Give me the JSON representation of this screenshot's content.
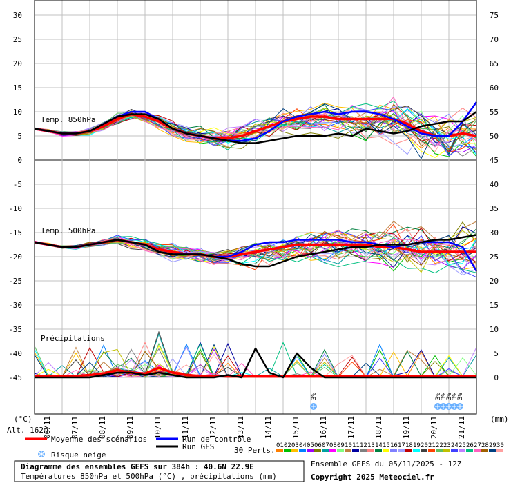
{
  "chart_data": {
    "type": "line",
    "title": "Diagramme des ensembles GEFS sur 384h : 40.6N 22.9E",
    "subtitle": "Températures 850hPa et 500hPa (°C) , précipitations (mm)",
    "left_axis": {
      "unit": "(°C)",
      "ticks": [
        30,
        25,
        20,
        15,
        10,
        5,
        0,
        -5,
        -10,
        -15,
        -20,
        -25,
        -30,
        -35,
        -40,
        -45
      ],
      "ylim": [
        -45,
        30
      ]
    },
    "right_axis": {
      "unit": "(mm)",
      "ticks": [
        75,
        70,
        65,
        60,
        55,
        50,
        45,
        40,
        35,
        30,
        25,
        20,
        15,
        10,
        5,
        0
      ],
      "ylim": [
        0,
        75
      ]
    },
    "x_labels": [
      "06/11",
      "07/11",
      "08/11",
      "09/11",
      "10/11",
      "11/11",
      "12/11",
      "13/11",
      "14/11",
      "15/11",
      "16/11",
      "17/11",
      "18/11",
      "19/11",
      "20/11",
      "21/11"
    ],
    "x_range_days": [
      0,
      16
    ],
    "altitude": "Alt. 162m",
    "panel_labels": {
      "t850": "Temp. 850hPa",
      "t500": "Temp. 500hPa",
      "precip": "Précipitations"
    },
    "series": [
      {
        "name": "Moyenne des scénarios",
        "color": "#ff0000",
        "group": "t850",
        "x": [
          0,
          0.5,
          1,
          1.5,
          2,
          2.5,
          3,
          3.5,
          4,
          4.5,
          5,
          5.5,
          6,
          6.5,
          7,
          7.5,
          8,
          8.5,
          9,
          9.5,
          10,
          10.5,
          11,
          11.5,
          12,
          12.5,
          13,
          13.5,
          14,
          14.5,
          15,
          15.5,
          16
        ],
        "values": [
          6.5,
          6,
          5.5,
          5.5,
          6,
          7,
          8.5,
          9.5,
          9,
          8,
          6.5,
          5.5,
          5,
          4.5,
          4.5,
          5,
          6,
          7,
          8,
          8.5,
          9,
          9,
          8.5,
          8.5,
          8.5,
          8.5,
          8.5,
          7.5,
          6,
          5,
          5,
          5.5,
          5
        ]
      },
      {
        "name": "Run de contrôle",
        "color": "#0000ff",
        "group": "t850",
        "x": [
          0,
          0.5,
          1,
          1.5,
          2,
          2.5,
          3,
          3.5,
          4,
          4.5,
          5,
          5.5,
          6,
          6.5,
          7,
          7.5,
          8,
          8.5,
          9,
          9.5,
          10,
          10.5,
          11,
          11.5,
          12,
          12.5,
          13,
          13.5,
          14,
          14.5,
          15,
          15.5,
          16
        ],
        "values": [
          6.5,
          6,
          5.5,
          5.5,
          6,
          7.5,
          9,
          10,
          10,
          8.5,
          6.5,
          5.5,
          5,
          4.5,
          4,
          4,
          4.5,
          6,
          8,
          9,
          9.5,
          10,
          9.5,
          10,
          10,
          9.5,
          8.5,
          7,
          5.5,
          5,
          5,
          8,
          12
        ]
      },
      {
        "name": "Run GFS",
        "color": "#000000",
        "group": "t850",
        "x": [
          0,
          0.5,
          1,
          1.5,
          2,
          2.5,
          3,
          3.5,
          4,
          4.5,
          5,
          5.5,
          6,
          6.5,
          7,
          7.5,
          8,
          8.5,
          9,
          9.5,
          10,
          10.5,
          11,
          11.5,
          12,
          12.5,
          13,
          13.5,
          14,
          14.5,
          15,
          15.5,
          16
        ],
        "values": [
          6.5,
          6,
          5.5,
          5.5,
          6,
          7.5,
          9,
          9.5,
          9.5,
          8.5,
          6.5,
          5.5,
          5,
          4.5,
          4,
          3.5,
          3.5,
          4,
          4.5,
          5,
          5,
          5,
          5.5,
          5,
          6.5,
          6,
          5.5,
          6,
          7,
          7.5,
          8,
          8,
          10
        ]
      },
      {
        "name": "Moyenne des scénarios",
        "color": "#ff0000",
        "group": "t500",
        "x": [
          0,
          0.5,
          1,
          1.5,
          2,
          2.5,
          3,
          3.5,
          4,
          4.5,
          5,
          5.5,
          6,
          6.5,
          7,
          7.5,
          8,
          8.5,
          9,
          9.5,
          10,
          10.5,
          11,
          11.5,
          12,
          12.5,
          13,
          13.5,
          14,
          14.5,
          15,
          15.5,
          16
        ],
        "values": [
          -17,
          -17.5,
          -18,
          -18,
          -17.5,
          -17,
          -16.5,
          -17,
          -17.5,
          -18.5,
          -19,
          -19.5,
          -19.5,
          -20,
          -20,
          -19.5,
          -19,
          -18.5,
          -18,
          -17.5,
          -17.5,
          -17.5,
          -17.5,
          -17.5,
          -17.5,
          -18,
          -18,
          -18.5,
          -19,
          -19,
          -19,
          -19,
          -19
        ]
      },
      {
        "name": "Run de contrôle",
        "color": "#0000ff",
        "group": "t500",
        "x": [
          0,
          0.5,
          1,
          1.5,
          2,
          2.5,
          3,
          3.5,
          4,
          4.5,
          5,
          5.5,
          6,
          6.5,
          7,
          7.5,
          8,
          8.5,
          9,
          9.5,
          10,
          10.5,
          11,
          11.5,
          12,
          12.5,
          13,
          13.5,
          14,
          14.5,
          15,
          15.5,
          16
        ],
        "values": [
          -17,
          -17.5,
          -18,
          -18,
          -17.5,
          -17,
          -16.5,
          -17,
          -17.5,
          -19,
          -19.5,
          -19.5,
          -19.5,
          -20,
          -20,
          -19,
          -17.5,
          -17,
          -17,
          -16.5,
          -16.5,
          -16.5,
          -16.5,
          -17,
          -17,
          -17.5,
          -18,
          -17.5,
          -17,
          -17,
          -17,
          -18,
          -23
        ]
      },
      {
        "name": "Run GFS",
        "color": "#000000",
        "group": "t500",
        "x": [
          0,
          0.5,
          1,
          1.5,
          2,
          2.5,
          3,
          3.5,
          4,
          4.5,
          5,
          5.5,
          6,
          6.5,
          7,
          7.5,
          8,
          8.5,
          9,
          9.5,
          10,
          10.5,
          11,
          11.5,
          12,
          12.5,
          13,
          13.5,
          14,
          14.5,
          15,
          15.5,
          16
        ],
        "values": [
          -17,
          -17.5,
          -18,
          -18,
          -17.5,
          -17,
          -16.5,
          -17,
          -17.5,
          -19,
          -19.5,
          -19.5,
          -19.5,
          -20,
          -20.5,
          -21.5,
          -22,
          -22,
          -21,
          -20,
          -19.5,
          -19,
          -18.5,
          -18,
          -18,
          -17.5,
          -17.5,
          -17.5,
          -17,
          -16.5,
          -16.5,
          -16,
          -15.5
        ]
      },
      {
        "name": "Moyenne des scénarios",
        "color": "#ff0000",
        "group": "precip",
        "x": [
          0,
          0.5,
          1,
          1.5,
          2,
          2.5,
          3,
          3.5,
          4,
          4.5,
          5,
          5.5,
          6,
          6.5,
          7,
          7.5,
          8,
          8.5,
          9,
          9.5,
          10,
          10.5,
          11,
          11.5,
          12,
          12.5,
          13,
          13.5,
          14,
          14.5,
          15,
          15.5,
          16
        ],
        "values": [
          0.3,
          0.2,
          0.2,
          0.3,
          0.5,
          0.8,
          1.5,
          1,
          0.8,
          2,
          1,
          0.5,
          0.3,
          0.3,
          0.2,
          0.2,
          0.2,
          0.2,
          0.2,
          0.2,
          0.2,
          0.2,
          0.2,
          0.2,
          0.2,
          0.3,
          0.3,
          0.2,
          0.3,
          0.3,
          0.3,
          0.3,
          0.3
        ]
      },
      {
        "name": "Run GFS",
        "color": "#000000",
        "group": "precip",
        "x": [
          0,
          0.5,
          1,
          1.5,
          2,
          2.5,
          3,
          3.5,
          4,
          4.5,
          5,
          5.5,
          6,
          6.5,
          7,
          7.5,
          8,
          8.5,
          9,
          9.5,
          10,
          10.5,
          11,
          11.5,
          12,
          12.5,
          13,
          13.5,
          14,
          14.5,
          15,
          15.5,
          16
        ],
        "values": [
          0,
          0,
          0,
          0,
          0,
          0.5,
          1,
          1,
          0.5,
          1,
          0.5,
          0,
          0,
          0,
          0.5,
          0,
          6,
          1,
          0,
          5,
          2,
          0,
          0,
          0,
          0,
          0,
          0,
          0,
          0,
          0,
          0,
          0,
          0
        ]
      }
    ],
    "ensemble_members": 30,
    "member_colors": [
      "#ff7f00",
      "#00c000",
      "#ffc000",
      "#0080ff",
      "#a000ff",
      "#808000",
      "#00a0a0",
      "#ff00ff",
      "#80ff80",
      "#c08040",
      "#0000a0",
      "#808080",
      "#ff8080",
      "#008040",
      "#ffff00",
      "#8080ff",
      "#a0a0ff",
      "#c00000",
      "#00ffff",
      "#404040",
      "#ff4000",
      "#60c060",
      "#c0c000",
      "#4040ff",
      "#c080ff",
      "#00c080",
      "#ff60c0",
      "#a06000",
      "#004080",
      "#ffa0a0"
    ]
  },
  "legend": {
    "mean": "Moyenne des scénarios",
    "control": "Run de contrôle",
    "gfs": "Run GFS",
    "snow": "Risque neige",
    "perts": "30 Perts.",
    "pert_numbers": [
      "01",
      "02",
      "03",
      "04",
      "05",
      "06",
      "07",
      "08",
      "09",
      "10",
      "11",
      "12",
      "13",
      "14",
      "15",
      "16",
      "17",
      "18",
      "19",
      "20",
      "21",
      "22",
      "23",
      "24",
      "25",
      "26",
      "27",
      "28",
      "29",
      "30"
    ],
    "snow_label": "3%",
    "snow_days": [
      10.1,
      14.6,
      14.8,
      15.0,
      15.2,
      15.4
    ]
  },
  "footer": {
    "title": "Diagramme des ensembles GEFS sur 384h : 40.6N 22.9E",
    "subtitle": "Températures 850hPa et 500hPa (°C) , précipitations (mm)",
    "run": "Ensemble GEFS du 05/11/2025 - 12Z",
    "copyright": "Copyright 2025 Meteociel.fr"
  },
  "colors": {
    "mean": "#ff0000",
    "control": "#0000ff",
    "gfs": "#000000",
    "grid": "#c0c0c0",
    "snow": "#6ab0ff"
  }
}
